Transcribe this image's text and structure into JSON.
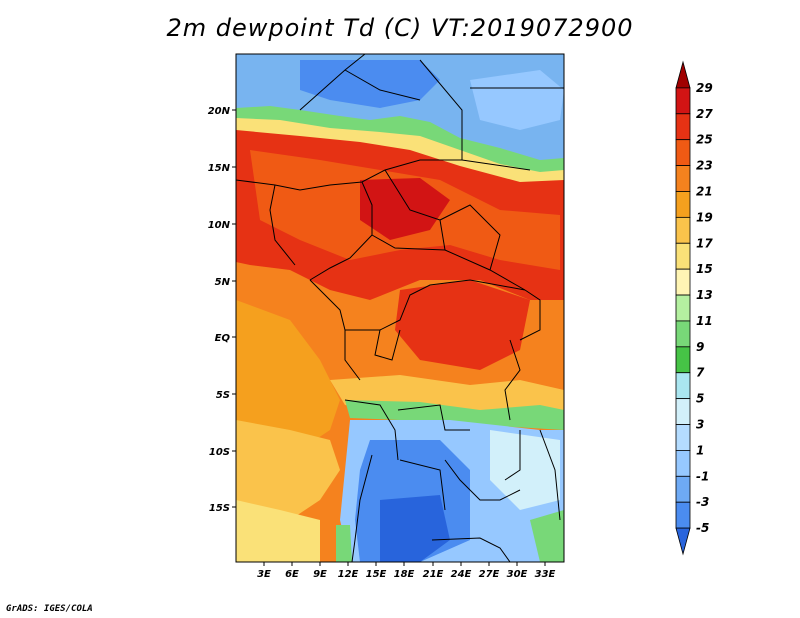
{
  "title": "2m dewpoint Td (C) VT:2019072900",
  "credit": "GrADS: IGES/COLA",
  "map": {
    "lat_labels": [
      "20N",
      "15N",
      "10N",
      "5N",
      "EQ",
      "5S",
      "10S",
      "15S"
    ],
    "lon_labels": [
      "3E",
      "6E",
      "9E",
      "12E",
      "15E",
      "18E",
      "21E",
      "24E",
      "27E",
      "30E",
      "33E"
    ]
  },
  "colorbar": {
    "labels": [
      "29",
      "27",
      "25",
      "23",
      "21",
      "19",
      "17",
      "15",
      "13",
      "11",
      "9",
      "7",
      "5",
      "3",
      "1",
      "-1",
      "-3",
      "-5"
    ],
    "colors": [
      "#a00000",
      "#d21414",
      "#e63214",
      "#f05a14",
      "#f5821e",
      "#f5a01e",
      "#fac34b",
      "#fae178",
      "#fff5b4",
      "#b4f0a0",
      "#78d878",
      "#46c346",
      "#aae6f0",
      "#d2f0fa",
      "#b4dcff",
      "#96c8ff",
      "#6eaaf5",
      "#4b8cf0",
      "#2864dc"
    ]
  }
}
